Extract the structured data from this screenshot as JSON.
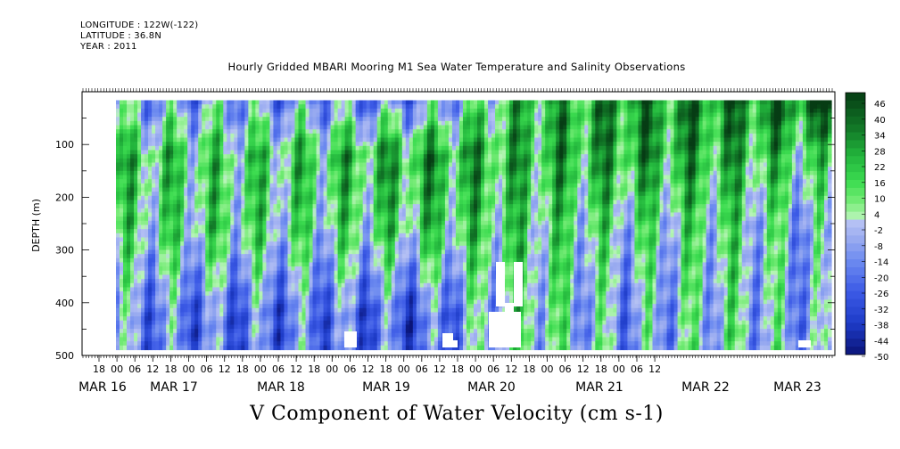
{
  "header": {
    "longitude": "LONGITUDE : 122W(-122)",
    "latitude": "LATITUDE : 36.8N",
    "year": "YEAR : 2011"
  },
  "chart_data": {
    "type": "heatmap",
    "title": "Hourly Gridded MBARI Mooring M1 Sea Water Temperature and Salinity Observations",
    "xlabel": "V Component of Water Velocity (cm s-1)",
    "ylabel": "DEPTH (m)",
    "ylim": [
      500,
      0
    ],
    "y_ticks": [
      100,
      200,
      300,
      400,
      500
    ],
    "x_range_hours": [
      "MAR 15 12:00",
      "MAR 23 18:00"
    ],
    "data_depth_range": [
      20,
      485
    ],
    "hour_tick_labels": [
      "18",
      "00",
      "06",
      "12",
      "18",
      "00",
      "06",
      "12",
      "18",
      "00",
      "06",
      "12",
      "18",
      "00",
      "06",
      "12",
      "18",
      "00",
      "06",
      "12",
      "18",
      "00",
      "06",
      "12",
      "18",
      "00",
      "06",
      "12",
      "18",
      "00",
      "06",
      "12"
    ],
    "day_labels": [
      "MAR 16",
      "MAR 17",
      "MAR 18",
      "MAR 19",
      "MAR 20",
      "MAR 21",
      "MAR 22",
      "MAR 23"
    ],
    "colorbar": {
      "ticks": [
        "46",
        "40",
        "34",
        "28",
        "22",
        "16",
        "10",
        "4",
        "-2",
        "-8",
        "-14",
        "-20",
        "-26",
        "-32",
        "-38",
        "-44",
        "-50"
      ],
      "min": -50,
      "max": 50
    },
    "colors": {
      "strong_positive": "#0a5a1e",
      "positive": "#3cdc50",
      "weak_positive": "#a8f0a8",
      "weak_negative": "#aab8f0",
      "negative": "#5a78e6",
      "strong_negative": "#0a1478"
    },
    "mean_profile_by_period": [
      {
        "period": "MAR 16",
        "surface": -10,
        "upper": 18,
        "middle": 8,
        "deep": -12
      },
      {
        "period": "MAR 17",
        "surface": -8,
        "upper": 12,
        "middle": 10,
        "deep": -20
      },
      {
        "period": "MAR 18",
        "surface": -12,
        "upper": 16,
        "middle": 6,
        "deep": -18
      },
      {
        "period": "MAR 19",
        "surface": -14,
        "upper": 26,
        "middle": 14,
        "deep": -24
      },
      {
        "period": "MAR 20",
        "surface": 20,
        "upper": 22,
        "middle": 12,
        "deep": 8
      },
      {
        "period": "MAR 21",
        "surface": 30,
        "upper": 26,
        "middle": 4,
        "deep": -10
      },
      {
        "period": "MAR 22",
        "surface": 32,
        "upper": 24,
        "middle": 8,
        "deep": 2
      },
      {
        "period": "MAR 23",
        "surface": 40,
        "upper": 10,
        "middle": -10,
        "deep": -12
      }
    ]
  }
}
